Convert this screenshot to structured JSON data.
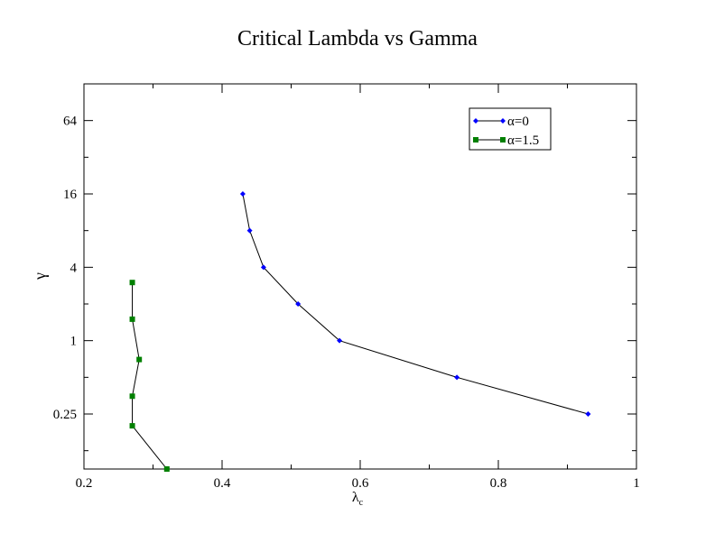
{
  "chart_data": {
    "type": "line",
    "title": "Critical Lambda vs Gamma",
    "xlabel": "λ",
    "xlabel_subscript": "c",
    "ylabel": "γ",
    "xlim": [
      0.2,
      1.0
    ],
    "ylim": [
      0.0884,
      128
    ],
    "yscale": "log2",
    "x_ticks": [
      {
        "value": 0.2,
        "label": "0.2"
      },
      {
        "value": 0.4,
        "label": "0.4"
      },
      {
        "value": 0.6,
        "label": "0.6"
      },
      {
        "value": 0.8,
        "label": "0.8"
      },
      {
        "value": 1.0,
        "label": "1"
      }
    ],
    "y_ticks": [
      {
        "value": 0.25,
        "label": "0.25"
      },
      {
        "value": 1,
        "label": "1"
      },
      {
        "value": 4,
        "label": "4"
      },
      {
        "value": 16,
        "label": "16"
      },
      {
        "value": 64,
        "label": "64"
      }
    ],
    "grid": false,
    "legend_position": "top-right",
    "series": [
      {
        "name": "α=0",
        "color": "#0000ff",
        "marker": "diamond",
        "line_color": "#000000",
        "x": [
          0.43,
          0.44,
          0.46,
          0.51,
          0.57,
          0.74,
          0.93
        ],
        "y": [
          16,
          8,
          4,
          2,
          1,
          0.5,
          0.25
        ]
      },
      {
        "name": "α=1.5",
        "color": "#008000",
        "marker": "square",
        "line_color": "#000000",
        "x": [
          0.27,
          0.27,
          0.28,
          0.27,
          0.27,
          0.32
        ],
        "y": [
          3,
          1.5,
          0.7,
          0.35,
          0.2,
          0.0884
        ]
      }
    ]
  }
}
